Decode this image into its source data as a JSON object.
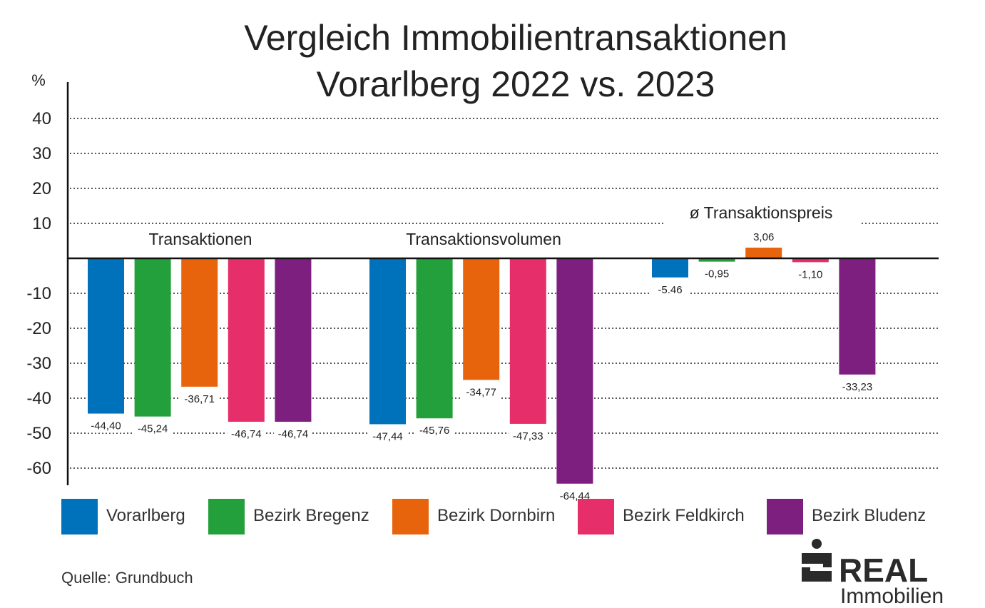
{
  "title_line1": "Vergleich Immobilientransaktionen",
  "title_line2": "Vorarlberg 2022 vs. 2023",
  "source": "Quelle: Grundbuch",
  "logo": {
    "text": "REAL",
    "sub": "Immobilien"
  },
  "chart_data": {
    "type": "bar",
    "title": "Vergleich Immobilientransaktionen Vorarlberg 2022 vs. 2023",
    "ylabel": "%",
    "ylim": [
      -60,
      40
    ],
    "yticks": [
      40,
      30,
      20,
      10,
      -10,
      -20,
      -30,
      -40,
      -50,
      -60
    ],
    "grid": true,
    "legend_position": "bottom",
    "categories": [
      "Transaktionen",
      "Transaktionsvolumen",
      "ø Transaktionspreis"
    ],
    "series": [
      {
        "name": "Vorarlberg",
        "color": "#0072bc",
        "values": [
          -44.4,
          -47.44,
          -5.46
        ],
        "labels": [
          "-44,40",
          "-47,44",
          "-5.46"
        ]
      },
      {
        "name": "Bezirk Bregenz",
        "color": "#23a03c",
        "values": [
          -45.24,
          -45.76,
          -0.95
        ],
        "labels": [
          "-45,24",
          "-45,76",
          "-0,95"
        ]
      },
      {
        "name": "Bezirk Dornbirn",
        "color": "#e8640c",
        "values": [
          -36.71,
          -34.77,
          3.06
        ],
        "labels": [
          "-36,71",
          "-34,77",
          "3,06"
        ]
      },
      {
        "name": "Bezirk Feldkirch",
        "color": "#e62e6b",
        "values": [
          -46.74,
          -47.33,
          -1.1
        ],
        "labels": [
          "-46,74",
          "-47,33",
          "-1,10"
        ]
      },
      {
        "name": "Bezirk Bludenz",
        "color": "#7d1f7f",
        "values": [
          -46.74,
          -64.44,
          -33.23
        ],
        "labels": [
          "-46,74",
          "-64,44",
          "-33,23"
        ]
      }
    ]
  }
}
